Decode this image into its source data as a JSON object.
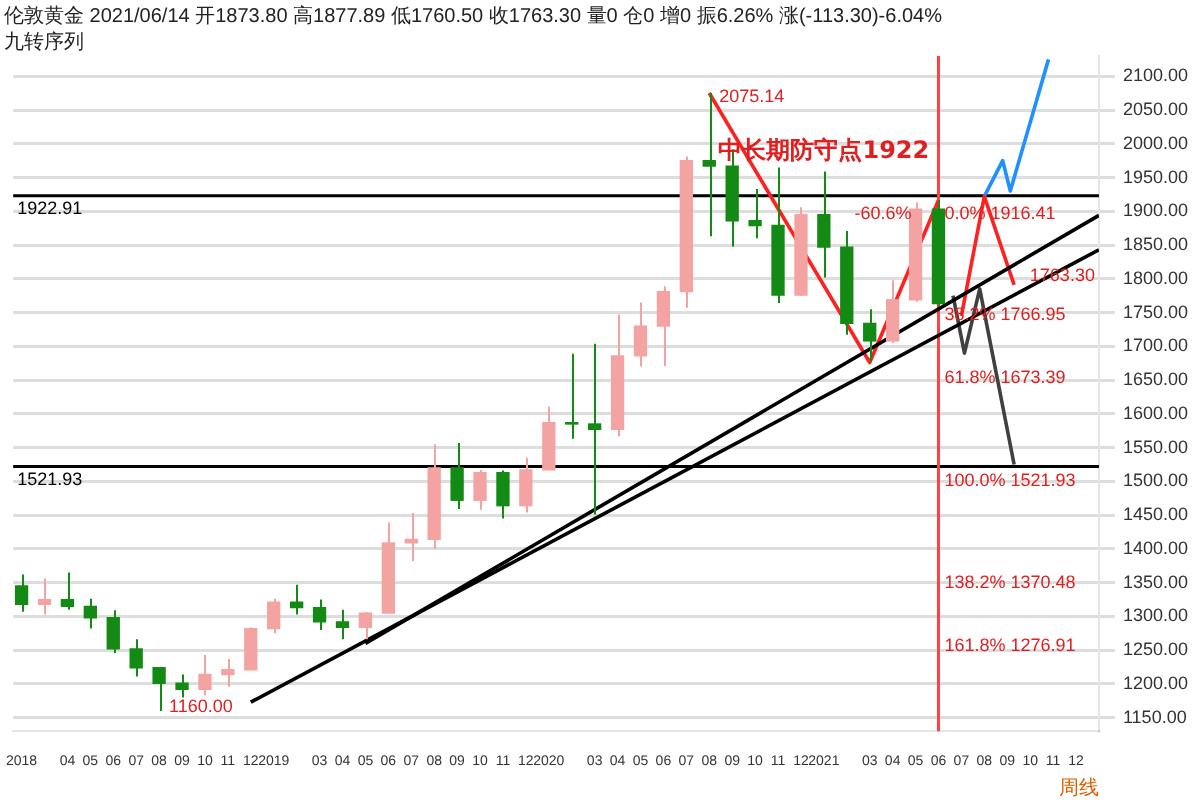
{
  "chart_data": {
    "type": "candlestick",
    "title": "伦敦黄金",
    "subtitle": "2021/06/14 开1873.80 高1877.89 低1760.50 收1763.30 量0 仓0 增0 振6.26% 涨(-113.30)-6.04%",
    "xlabel": "周线",
    "x": [
      "2018-02",
      "2018-03",
      "2018-04",
      "2018-05",
      "2018-06",
      "2018-07",
      "2018-08",
      "2018-09",
      "2018-10",
      "2018-11",
      "2018-12",
      "2019-01",
      "2019-02",
      "2019-03",
      "2019-04",
      "2019-05",
      "2019-06",
      "2019-07",
      "2019-08",
      "2019-09",
      "2019-10",
      "2019-11",
      "2019-12",
      "2020-01",
      "2020-02",
      "2020-03",
      "2020-04",
      "2020-05",
      "2020-06",
      "2020-07",
      "2020-08",
      "2020-09",
      "2020-10",
      "2020-11",
      "2020-12",
      "2021-01",
      "2021-02",
      "2021-03",
      "2021-04",
      "2021-05",
      "2021-06"
    ],
    "ohlc": [
      [
        1345,
        1362,
        1307,
        1318
      ],
      [
        1318,
        1356,
        1303,
        1325
      ],
      [
        1325,
        1365,
        1310,
        1315
      ],
      [
        1315,
        1326,
        1282,
        1298
      ],
      [
        1298,
        1309,
        1246,
        1252
      ],
      [
        1252,
        1266,
        1211,
        1224
      ],
      [
        1224,
        1224,
        1160,
        1201
      ],
      [
        1201,
        1214,
        1180,
        1192
      ],
      [
        1192,
        1243,
        1183,
        1214
      ],
      [
        1214,
        1237,
        1196,
        1221
      ],
      [
        1221,
        1284,
        1221,
        1282
      ],
      [
        1282,
        1326,
        1275,
        1321
      ],
      [
        1321,
        1347,
        1303,
        1313
      ],
      [
        1313,
        1325,
        1280,
        1292
      ],
      [
        1292,
        1310,
        1266,
        1284
      ],
      [
        1284,
        1306,
        1266,
        1305
      ],
      [
        1305,
        1439,
        1305,
        1409
      ],
      [
        1409,
        1453,
        1382,
        1414
      ],
      [
        1414,
        1555,
        1400,
        1520
      ],
      [
        1520,
        1557,
        1459,
        1472
      ],
      [
        1472,
        1517,
        1458,
        1513
      ],
      [
        1513,
        1516,
        1445,
        1464
      ],
      [
        1464,
        1535,
        1454,
        1517
      ],
      [
        1517,
        1611,
        1517,
        1587
      ],
      [
        1587,
        1689,
        1563,
        1585
      ],
      [
        1585,
        1704,
        1451,
        1577
      ],
      [
        1577,
        1747,
        1567,
        1686
      ],
      [
        1686,
        1765,
        1670,
        1730
      ],
      [
        1730,
        1789,
        1671,
        1781
      ],
      [
        1781,
        1981,
        1757,
        1975
      ],
      [
        1975,
        2075.14,
        1863,
        1967
      ],
      [
        1967,
        1992,
        1848,
        1886
      ],
      [
        1886,
        1933,
        1860,
        1879
      ],
      [
        1879,
        1965,
        1764,
        1776
      ],
      [
        1776,
        1906,
        1775,
        1895
      ],
      [
        1895,
        1959,
        1802,
        1847
      ],
      [
        1847,
        1871,
        1717,
        1734
      ],
      [
        1734,
        1755,
        1677,
        1708
      ],
      [
        1708,
        1798,
        1705,
        1769
      ],
      [
        1769,
        1913,
        1766,
        1903
      ],
      [
        1903,
        1916.41,
        1760.5,
        1763.3
      ]
    ],
    "colors": [
      "#138a13",
      "#f4a3a3",
      "#138a13",
      "#138a13",
      "#138a13",
      "#138a13",
      "#138a13",
      "#138a13",
      "#f4a3a3",
      "#f4a3a3",
      "#f4a3a3",
      "#f4a3a3",
      "#138a13",
      "#138a13",
      "#138a13",
      "#f4a3a3",
      "#f4a3a3",
      "#f4a3a3",
      "#f4a3a3",
      "#138a13",
      "#f4a3a3",
      "#138a13",
      "#f4a3a3",
      "#f4a3a3",
      "#138a13",
      "#138a13",
      "#f4a3a3",
      "#f4a3a3",
      "#f4a3a3",
      "#f4a3a3",
      "#138a13",
      "#138a13",
      "#138a13",
      "#138a13",
      "#f4a3a3",
      "#138a13",
      "#138a13",
      "#138a13",
      "#f4a3a3",
      "#f4a3a3",
      "#138a13"
    ],
    "series": [
      {
        "type": "line",
        "color": "#000000",
        "x": [
          "2018-12",
          "2022-01"
        ],
        "values": [
          1173,
          1843
        ]
      },
      {
        "type": "line",
        "color": "#000000",
        "x": [
          "2019-05",
          "2022-01"
        ],
        "values": [
          1260,
          1894
        ]
      },
      {
        "type": "line",
        "color": "#ff2020",
        "x": [
          "2020-08",
          "2021-03",
          "2021-06"
        ],
        "values": [
          2075.14,
          1676,
          1916.41
        ]
      },
      {
        "type": "line",
        "color": "#ff2020",
        "x": [
          "2021-07",
          "2021-08",
          "2021-09-10"
        ],
        "values": [
          1745,
          1922,
          1791
        ]
      },
      {
        "type": "line",
        "color": "#1e90ff",
        "x": [
          "2021-08",
          "2021-08-25",
          "2021-09-05",
          "2021-10-25"
        ],
        "values": [
          1922,
          1975,
          1930,
          2125
        ]
      },
      {
        "type": "line",
        "color": "#404040",
        "x": [
          "2021-06-20",
          "2021-07-05",
          "2021-07-25",
          "2021-09-10"
        ],
        "values": [
          1775,
          1690,
          1785,
          1525
        ]
      }
    ],
    "xlim": [
      "2018-01-20",
      "2022-01"
    ],
    "xticks": [
      {
        "value": "2018-02",
        "label": "2018"
      },
      {
        "value": "2018-04",
        "label": "04"
      },
      {
        "value": "2018-05",
        "label": "05"
      },
      {
        "value": "2018-06",
        "label": "06"
      },
      {
        "value": "2018-07",
        "label": "07"
      },
      {
        "value": "2018-08",
        "label": "08"
      },
      {
        "value": "2018-09",
        "label": "09"
      },
      {
        "value": "2018-10",
        "label": "10"
      },
      {
        "value": "2018-11",
        "label": "11"
      },
      {
        "value": "2018-12",
        "label": "12"
      },
      {
        "value": "2019-01",
        "label": "2019"
      },
      {
        "value": "2019-03",
        "label": "03"
      },
      {
        "value": "2019-04",
        "label": "04"
      },
      {
        "value": "2019-05",
        "label": "05"
      },
      {
        "value": "2019-06",
        "label": "06"
      },
      {
        "value": "2019-07",
        "label": "07"
      },
      {
        "value": "2019-08",
        "label": "08"
      },
      {
        "value": "2019-09",
        "label": "09"
      },
      {
        "value": "2019-10",
        "label": "10"
      },
      {
        "value": "2019-11",
        "label": "11"
      },
      {
        "value": "2019-12",
        "label": "12"
      },
      {
        "value": "2020-01",
        "label": "2020"
      },
      {
        "value": "2020-03",
        "label": "03"
      },
      {
        "value": "2020-04",
        "label": "04"
      },
      {
        "value": "2020-05",
        "label": "05"
      },
      {
        "value": "2020-06",
        "label": "06"
      },
      {
        "value": "2020-07",
        "label": "07"
      },
      {
        "value": "2020-08",
        "label": "08"
      },
      {
        "value": "2020-09",
        "label": "09"
      },
      {
        "value": "2020-10",
        "label": "10"
      },
      {
        "value": "2020-11",
        "label": "11"
      },
      {
        "value": "2020-12",
        "label": "12"
      },
      {
        "value": "2021-01",
        "label": "2021"
      },
      {
        "value": "2021-03",
        "label": "03"
      },
      {
        "value": "2021-04",
        "label": "04"
      },
      {
        "value": "2021-05",
        "label": "05"
      },
      {
        "value": "2021-06",
        "label": "06"
      },
      {
        "value": "2021-07",
        "label": "07"
      },
      {
        "value": "2021-08",
        "label": "08"
      },
      {
        "value": "2021-09",
        "label": "09"
      },
      {
        "value": "2021-10",
        "label": "10"
      },
      {
        "value": "2021-11",
        "label": "11"
      },
      {
        "value": "2021-12",
        "label": "12"
      }
    ],
    "ylim": [
      1130,
      2130
    ],
    "yticks": [
      {
        "value": 1150,
        "label": "1150.00"
      },
      {
        "value": 1200,
        "label": "1200.00"
      },
      {
        "value": 1250,
        "label": "1250.00"
      },
      {
        "value": 1300,
        "label": "1300.00"
      },
      {
        "value": 1350,
        "label": "1350.00"
      },
      {
        "value": 1400,
        "label": "1400.00"
      },
      {
        "value": 1450,
        "label": "1450.00"
      },
      {
        "value": 1500,
        "label": "1500.00"
      },
      {
        "value": 1550,
        "label": "1550.00"
      },
      {
        "value": 1600,
        "label": "1600.00"
      },
      {
        "value": 1650,
        "label": "1650.00"
      },
      {
        "value": 1700,
        "label": "1700.00"
      },
      {
        "value": 1750,
        "label": "1750.00"
      },
      {
        "value": 1800,
        "label": "1800.00"
      },
      {
        "value": 1850,
        "label": "1850.00"
      },
      {
        "value": 1900,
        "label": "1900.00"
      },
      {
        "value": 1950,
        "label": "1950.00"
      },
      {
        "value": 2000,
        "label": "2000.00"
      },
      {
        "value": 2050,
        "label": "2050.00"
      },
      {
        "value": 2100,
        "label": "2100.00"
      }
    ],
    "grid": "y",
    "legend": false,
    "ref_lines": [
      {
        "axis": "y",
        "value": 1922.91,
        "label": "1922.91",
        "color": "#000000"
      },
      {
        "axis": "y",
        "value": 1521.93,
        "label": "1521.93",
        "color": "#000000"
      },
      {
        "axis": "x",
        "value": "2021-06",
        "label": null,
        "color": "#ff4040"
      }
    ],
    "annotations": [
      "九转序列",
      {
        "text": "2075.14",
        "x": "2020-08",
        "y": 2075.14
      },
      {
        "text": "1160.00",
        "x": "2018-08",
        "y": 1160
      },
      {
        "text": "中长期防守点1922",
        "x": "2021-01",
        "y": 1922.91
      },
      {
        "text": "-60.6%",
        "x": "2021-05",
        "y": 1916.41
      },
      {
        "text": "0.0% 1916.41",
        "x": "2021-06",
        "y": 1916.41
      },
      {
        "text": "38.2% 1766.95",
        "x": "2021-06",
        "y": 1766.95
      },
      {
        "text": "61.8% 1673.39",
        "x": "2021-06",
        "y": 1673.39
      },
      {
        "text": "100.0% 1521.93",
        "x": "2021-06",
        "y": 1521.93
      },
      {
        "text": "138.2% 1370.48",
        "x": "2021-06",
        "y": 1370.48
      },
      {
        "text": "161.8% 1276.91",
        "x": "2021-06",
        "y": 1276.91
      },
      "1763.30"
    ]
  }
}
